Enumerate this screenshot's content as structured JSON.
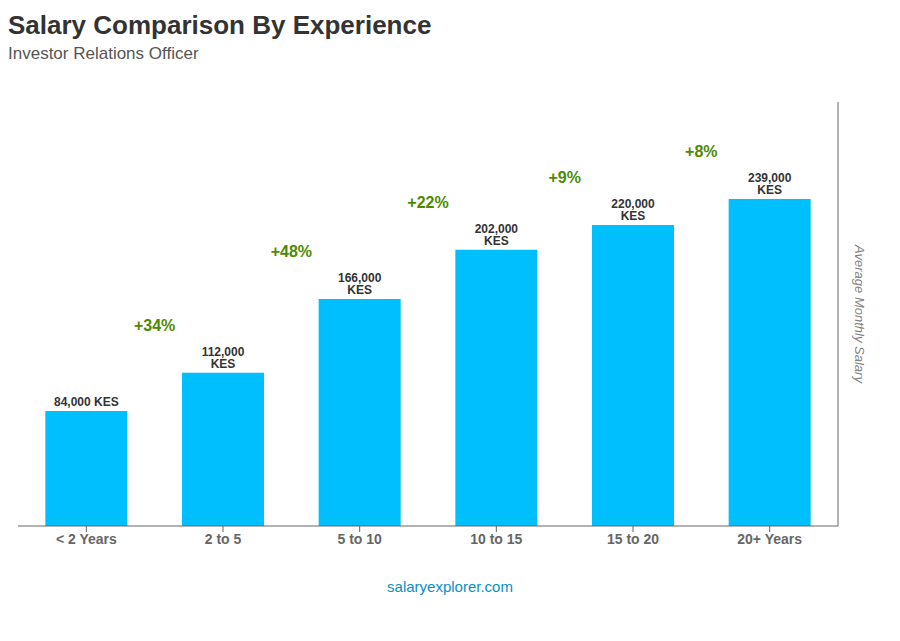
{
  "chart_data": {
    "type": "bar",
    "title": "Salary Comparison By Experience",
    "subtitle": "Investor Relations Officer",
    "y_label": "Average Monthly Salary",
    "footer": "salaryexplorer.com",
    "categories": [
      "< 2 Years",
      "2 to 5",
      "5 to 10",
      "10 to 15",
      "15 to 20",
      "20+ Years"
    ],
    "values": [
      84000,
      112000,
      166000,
      202000,
      220000,
      239000
    ],
    "value_labels": [
      "84,000 KES",
      "112,000 KES",
      "166,000 KES",
      "202,000 KES",
      "220,000 KES",
      "239,000 KES"
    ],
    "annotations": [
      "+34%",
      "+48%",
      "+22%",
      "+9%",
      "+8%"
    ],
    "color": "#00BFFF",
    "ylim": [
      0,
      310000
    ],
    "grid": false,
    "data_labels": true,
    "tick_labels": "x"
  }
}
